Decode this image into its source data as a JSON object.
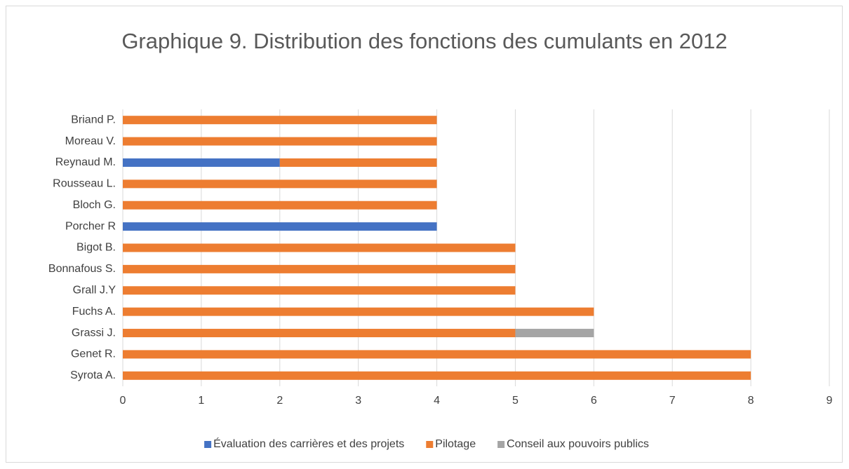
{
  "chart_data": {
    "type": "bar",
    "orientation": "horizontal",
    "stacked": true,
    "title": "Graphique 9. Distribution des fonctions des cumulants en 2012",
    "categories": [
      "Briand P.",
      "Moreau V.",
      "Reynaud M.",
      "Rousseau L.",
      "Bloch G.",
      "Porcher R",
      "Bigot B.",
      "Bonnafous S.",
      "Grall J.Y",
      "Fuchs A.",
      "Grassi J.",
      "Genet R.",
      "Syrota A."
    ],
    "series": [
      {
        "name": "Évaluation des carrières et des projets",
        "color": "#4472c4",
        "values": [
          0,
          0,
          2,
          0,
          0,
          4,
          0,
          0,
          0,
          0,
          0,
          0,
          0
        ]
      },
      {
        "name": "Pilotage",
        "color": "#ed7d31",
        "values": [
          4,
          4,
          2,
          4,
          4,
          0,
          5,
          5,
          5,
          6,
          5,
          8,
          8
        ]
      },
      {
        "name": "Conseil aux pouvoirs publics",
        "color": "#a5a5a5",
        "values": [
          0,
          0,
          0,
          0,
          0,
          0,
          0,
          0,
          0,
          0,
          1,
          0,
          0
        ]
      }
    ],
    "xlim": [
      0,
      9
    ],
    "xticks": [
      0,
      1,
      2,
      3,
      4,
      5,
      6,
      7,
      8,
      9
    ],
    "grid": true,
    "legend": "bottom"
  }
}
